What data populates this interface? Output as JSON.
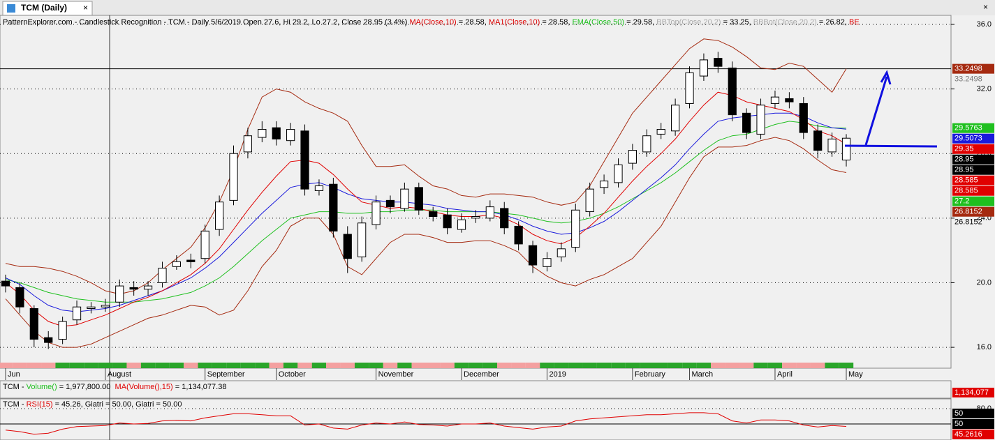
{
  "tab": {
    "title": "TCM (Daily)"
  },
  "chart_data": {
    "type": "candlestick",
    "header": [
      {
        "text": "PatternExplorer.com - Candlestick Recognition - TCM - Daily 5/6/2019 Open 27.6, Hi 29.2, Lo 27.2, Close 28.95 (3.4%) ",
        "color": "#000000"
      },
      {
        "text": "MA(Close,10)",
        "color": "#e00000"
      },
      {
        "text": " = 28.58, ",
        "color": "#000000"
      },
      {
        "text": "MA1(Close,10)",
        "color": "#e00000"
      },
      {
        "text": " = 28.58, ",
        "color": "#000000"
      },
      {
        "text": "EMA(Close,50)",
        "color": "#1fc01f"
      },
      {
        "text": " = 29.58, ",
        "color": "#000000"
      },
      {
        "text": "BBTop(Close,20,2)",
        "color": "#aaaaaa"
      },
      {
        "text": " = 33.25, ",
        "color": "#000000"
      },
      {
        "text": "BBBot(Close,20,2)",
        "color": "#aaaaaa"
      },
      {
        "text": " = 26.82, ",
        "color": "#000000"
      },
      {
        "text": "BE",
        "color": "#e00000"
      }
    ],
    "categories": [
      "Jun",
      null,
      null,
      null,
      null,
      null,
      null,
      "August",
      null,
      null,
      null,
      null,
      null,
      null,
      "September",
      null,
      null,
      null,
      null,
      "October",
      null,
      null,
      null,
      null,
      null,
      null,
      "November",
      null,
      null,
      null,
      null,
      null,
      "December",
      null,
      null,
      null,
      null,
      null,
      "2019",
      null,
      null,
      null,
      null,
      null,
      "February",
      null,
      null,
      null,
      "March",
      null,
      null,
      null,
      null,
      null,
      "April",
      null,
      null,
      null,
      null,
      "May"
    ],
    "open": [
      20.1,
      19.7,
      18.4,
      16.6,
      16.5,
      17.7,
      18.4,
      18.5,
      18.8,
      19.7,
      19.6,
      20.0,
      21.0,
      21.4,
      21.5,
      23.3,
      25.1,
      28.1,
      29.0,
      29.6,
      28.8,
      29.4,
      25.7,
      26.1,
      23.0,
      21.6,
      23.6,
      25.1,
      24.6,
      25.9,
      24.4,
      24.2,
      23.3,
      24.0,
      24.0,
      24.6,
      23.5,
      22.3,
      21.0,
      21.6,
      22.2,
      24.4,
      25.9,
      26.2,
      27.4,
      28.1,
      29.2,
      29.4,
      31.1,
      32.8,
      33.9,
      33.3,
      30.5,
      29.2,
      31.1,
      31.4,
      31.1,
      29.4,
      28.1,
      27.6
    ],
    "high": [
      20.5,
      20.0,
      18.6,
      17.0,
      17.9,
      18.9,
      18.8,
      19.0,
      20.2,
      20.1,
      20.1,
      21.3,
      21.7,
      21.8,
      23.6,
      25.4,
      28.5,
      29.6,
      30.0,
      30.0,
      29.9,
      29.8,
      26.4,
      26.5,
      23.5,
      24.1,
      25.4,
      25.4,
      26.2,
      26.2,
      24.7,
      24.6,
      24.3,
      24.5,
      25.1,
      25.0,
      23.8,
      22.6,
      21.9,
      22.5,
      24.9,
      26.2,
      26.7,
      27.7,
      28.6,
      29.5,
      29.9,
      31.4,
      33.4,
      34.2,
      34.3,
      33.7,
      30.8,
      31.4,
      31.9,
      31.8,
      31.5,
      29.8,
      29.3,
      29.2
    ],
    "low": [
      19.4,
      18.1,
      16.0,
      15.9,
      16.2,
      17.4,
      18.1,
      18.2,
      18.5,
      19.2,
      19.2,
      19.7,
      20.8,
      20.9,
      21.2,
      22.9,
      24.8,
      27.7,
      28.7,
      28.5,
      28.5,
      25.4,
      25.4,
      22.8,
      20.6,
      21.3,
      23.3,
      24.3,
      24.4,
      24.2,
      23.8,
      23.0,
      23.1,
      23.7,
      23.8,
      23.0,
      22.0,
      20.6,
      20.7,
      21.3,
      21.9,
      24.1,
      25.5,
      25.9,
      27.0,
      27.8,
      28.9,
      29.1,
      30.8,
      32.5,
      33.0,
      30.0,
      28.9,
      28.9,
      30.8,
      30.8,
      28.9,
      27.7,
      27.8,
      27.2
    ],
    "close": [
      19.8,
      18.5,
      16.5,
      16.3,
      17.6,
      18.5,
      18.5,
      18.6,
      19.8,
      19.6,
      19.8,
      20.9,
      21.3,
      21.3,
      23.2,
      25.0,
      28.0,
      29.1,
      29.5,
      28.9,
      29.5,
      25.8,
      26.0,
      23.2,
      21.5,
      23.7,
      25.0,
      24.7,
      25.8,
      24.5,
      24.1,
      23.4,
      23.9,
      24.1,
      24.7,
      23.4,
      22.4,
      21.1,
      21.5,
      22.1,
      24.5,
      25.8,
      26.3,
      27.3,
      28.2,
      29.1,
      29.5,
      31.0,
      33.0,
      33.8,
      33.4,
      30.4,
      29.3,
      31.0,
      31.5,
      31.2,
      29.3,
      28.2,
      28.9,
      28.95
    ],
    "up_color": "#ffffff",
    "down_color": "#000000",
    "series": [
      {
        "color": "#a52a10",
        "values": [
          21.2,
          21.0,
          21.0,
          20.9,
          20.7,
          20.4,
          20.0,
          19.5,
          19.3,
          19.5,
          20.0,
          20.8,
          21.5,
          22.2,
          23.4,
          25.0,
          27.0,
          29.5,
          31.5,
          32.0,
          31.8,
          31.2,
          30.8,
          30.5,
          30.0,
          28.5,
          27.2,
          27.2,
          27.3,
          26.6,
          26.0,
          25.8,
          25.4,
          25.3,
          25.5,
          25.5,
          25.4,
          25.3,
          25.0,
          24.8,
          25.0,
          26.0,
          27.5,
          29.0,
          30.5,
          31.5,
          32.5,
          33.5,
          34.5,
          35.1,
          35.0,
          34.6,
          34.0,
          33.3,
          33.2,
          33.6,
          33.4,
          32.6,
          31.8,
          33.25
        ]
      },
      {
        "color": "#a52a10",
        "values": [
          19.0,
          18.0,
          17.0,
          16.3,
          16.0,
          16.0,
          16.2,
          16.6,
          17.0,
          17.4,
          17.8,
          18.0,
          18.3,
          18.6,
          18.5,
          18.0,
          18.3,
          19.5,
          21.0,
          22.0,
          23.5,
          24.0,
          24.0,
          23.0,
          21.0,
          20.5,
          21.5,
          22.5,
          23.0,
          23.0,
          22.8,
          22.5,
          22.5,
          22.6,
          22.6,
          22.3,
          21.9,
          21.0,
          20.4,
          20.0,
          19.8,
          20.2,
          20.5,
          21.0,
          21.5,
          22.5,
          23.5,
          25.0,
          26.5,
          27.8,
          28.4,
          28.4,
          28.5,
          28.8,
          29.0,
          28.8,
          28.3,
          27.6,
          27.0,
          26.82
        ]
      },
      {
        "color": "#1fc01f",
        "values": [
          20.2,
          20.0,
          19.7,
          19.4,
          19.2,
          19.0,
          18.9,
          18.8,
          18.8,
          18.8,
          18.9,
          19.0,
          19.2,
          19.4,
          19.8,
          20.3,
          21.0,
          21.8,
          22.6,
          23.3,
          24.0,
          24.2,
          24.4,
          24.4,
          24.3,
          24.3,
          24.4,
          24.4,
          24.5,
          24.5,
          24.5,
          24.4,
          24.4,
          24.4,
          24.4,
          24.3,
          24.2,
          24.0,
          23.8,
          23.7,
          23.8,
          24.0,
          24.3,
          24.7,
          25.2,
          25.7,
          26.2,
          26.8,
          27.5,
          28.2,
          28.8,
          29.1,
          29.2,
          29.5,
          29.8,
          30.0,
          29.9,
          29.7,
          29.6,
          29.5763
        ]
      },
      {
        "color": "#1a1adc",
        "values": [
          20.3,
          19.9,
          19.2,
          18.6,
          18.3,
          18.2,
          18.3,
          18.4,
          18.6,
          18.9,
          19.2,
          19.5,
          19.9,
          20.3,
          20.9,
          21.6,
          22.5,
          23.4,
          24.3,
          25.1,
          25.9,
          26.1,
          26.2,
          25.9,
          25.5,
          25.2,
          25.1,
          25.0,
          25.0,
          24.9,
          24.8,
          24.6,
          24.5,
          24.4,
          24.4,
          24.2,
          23.9,
          23.5,
          23.2,
          23.0,
          23.1,
          23.4,
          23.8,
          24.4,
          25.1,
          25.8,
          26.5,
          27.3,
          28.3,
          29.2,
          30.0,
          30.2,
          30.3,
          30.4,
          30.5,
          30.5,
          30.3,
          29.9,
          29.6,
          29.5073
        ]
      },
      {
        "color": "#e00000",
        "values": [
          20.0,
          19.3,
          18.3,
          17.6,
          17.3,
          17.4,
          17.7,
          18.0,
          18.4,
          18.8,
          19.1,
          19.5,
          20.0,
          20.5,
          21.2,
          22.1,
          23.3,
          24.5,
          25.6,
          26.6,
          27.5,
          27.6,
          27.4,
          26.7,
          25.8,
          25.0,
          24.8,
          24.6,
          24.7,
          24.6,
          24.4,
          24.2,
          24.1,
          24.1,
          24.2,
          24.0,
          23.6,
          23.0,
          22.6,
          22.4,
          22.8,
          23.5,
          24.3,
          25.3,
          26.3,
          27.2,
          28.0,
          28.9,
          30.0,
          31.0,
          31.8,
          31.6,
          31.2,
          31.0,
          30.8,
          30.6,
          30.1,
          29.4,
          29.1,
          28.58
        ]
      }
    ],
    "reference_line": 33.2498,
    "ylim": [
      15.14,
      36.3
    ],
    "yticks": [
      {
        "value": 16,
        "label": "16.0"
      },
      {
        "value": 20,
        "label": "20.0"
      },
      {
        "value": 24,
        "label": "24.0"
      },
      {
        "value": 28,
        "label": "28.0"
      },
      {
        "value": 32,
        "label": "32.0"
      },
      {
        "value": 36,
        "label": "36.0"
      }
    ],
    "grid": true,
    "price_tags": [
      {
        "value": 33.2498,
        "color": "#a52a10",
        "text_color": "#ffffff"
      },
      {
        "value": 33.2498,
        "color": null,
        "text_color": "#777777"
      },
      {
        "value": 29.5763,
        "color": "#1fc01f",
        "text_color": "#ffffff"
      },
      {
        "value": 29.5073,
        "color": "#1a1adc",
        "text_color": "#ffffff"
      },
      {
        "value": 29.35,
        "color": "#e00000",
        "text_color": "#ffffff"
      },
      {
        "value": 28.95,
        "color": "#000000",
        "text_color": "#ffffff"
      },
      {
        "value": 28.95,
        "color": "#000000",
        "text_color": "#ffffff"
      },
      {
        "value": 28.585,
        "color": "#e00000",
        "text_color": "#ffffff"
      },
      {
        "value": 28.585,
        "color": "#e00000",
        "text_color": "#ffffff"
      },
      {
        "value": 27.2,
        "color": "#1fc01f",
        "text_color": "#ffffff"
      },
      {
        "value": 26.8152,
        "color": "#a52a10",
        "text_color": "#ffffff"
      },
      {
        "value": 26.8152,
        "color": null,
        "text_color": "#000000"
      }
    ]
  },
  "volume_panel": {
    "header": [
      {
        "text": "TCM - ",
        "color": "#000000"
      },
      {
        "text": "Volume()",
        "color": "#1fc01f"
      },
      {
        "text": " = 1,977,800.00  ",
        "color": "#000000"
      },
      {
        "text": "MA(Volume(),15)",
        "color": "#e00000"
      },
      {
        "text": " = 1,134,077.38",
        "color": "#000000"
      }
    ],
    "tag": {
      "value": 1134077,
      "label": "1,134,077",
      "color": "#e00000"
    }
  },
  "rsi_panel": {
    "type": "line",
    "header": [
      {
        "text": "TCM - ",
        "color": "#000000"
      },
      {
        "text": "RSI(15)",
        "color": "#e00000"
      },
      {
        "text": " = 45.26, Giatri = 50.00, Giatri = 50.00",
        "color": "#000000"
      }
    ],
    "color": "#e00000",
    "values": [
      38,
      35,
      30,
      32,
      40,
      45,
      46,
      47,
      52,
      50,
      51,
      56,
      57,
      56,
      62,
      66,
      70,
      70,
      68,
      66,
      66,
      48,
      50,
      42,
      40,
      48,
      52,
      50,
      54,
      49,
      48,
      46,
      50,
      50,
      52,
      46,
      43,
      40,
      44,
      46,
      56,
      60,
      62,
      64,
      66,
      68,
      68,
      70,
      72,
      72,
      70,
      56,
      52,
      58,
      58,
      56,
      48,
      44,
      47,
      45.26
    ],
    "reference_line": 50,
    "ylim": [
      21.4,
      96.4
    ],
    "yticks": [
      {
        "value": 80,
        "label": "80.0"
      }
    ],
    "tags": [
      {
        "value": 50,
        "color": "#000000",
        "text_color": "#ffffff"
      },
      {
        "value": 50,
        "color": "#000000",
        "text_color": "#ffffff"
      },
      {
        "value": 45.2616,
        "color": "#e00000",
        "text_color": "#ffffff"
      }
    ]
  }
}
